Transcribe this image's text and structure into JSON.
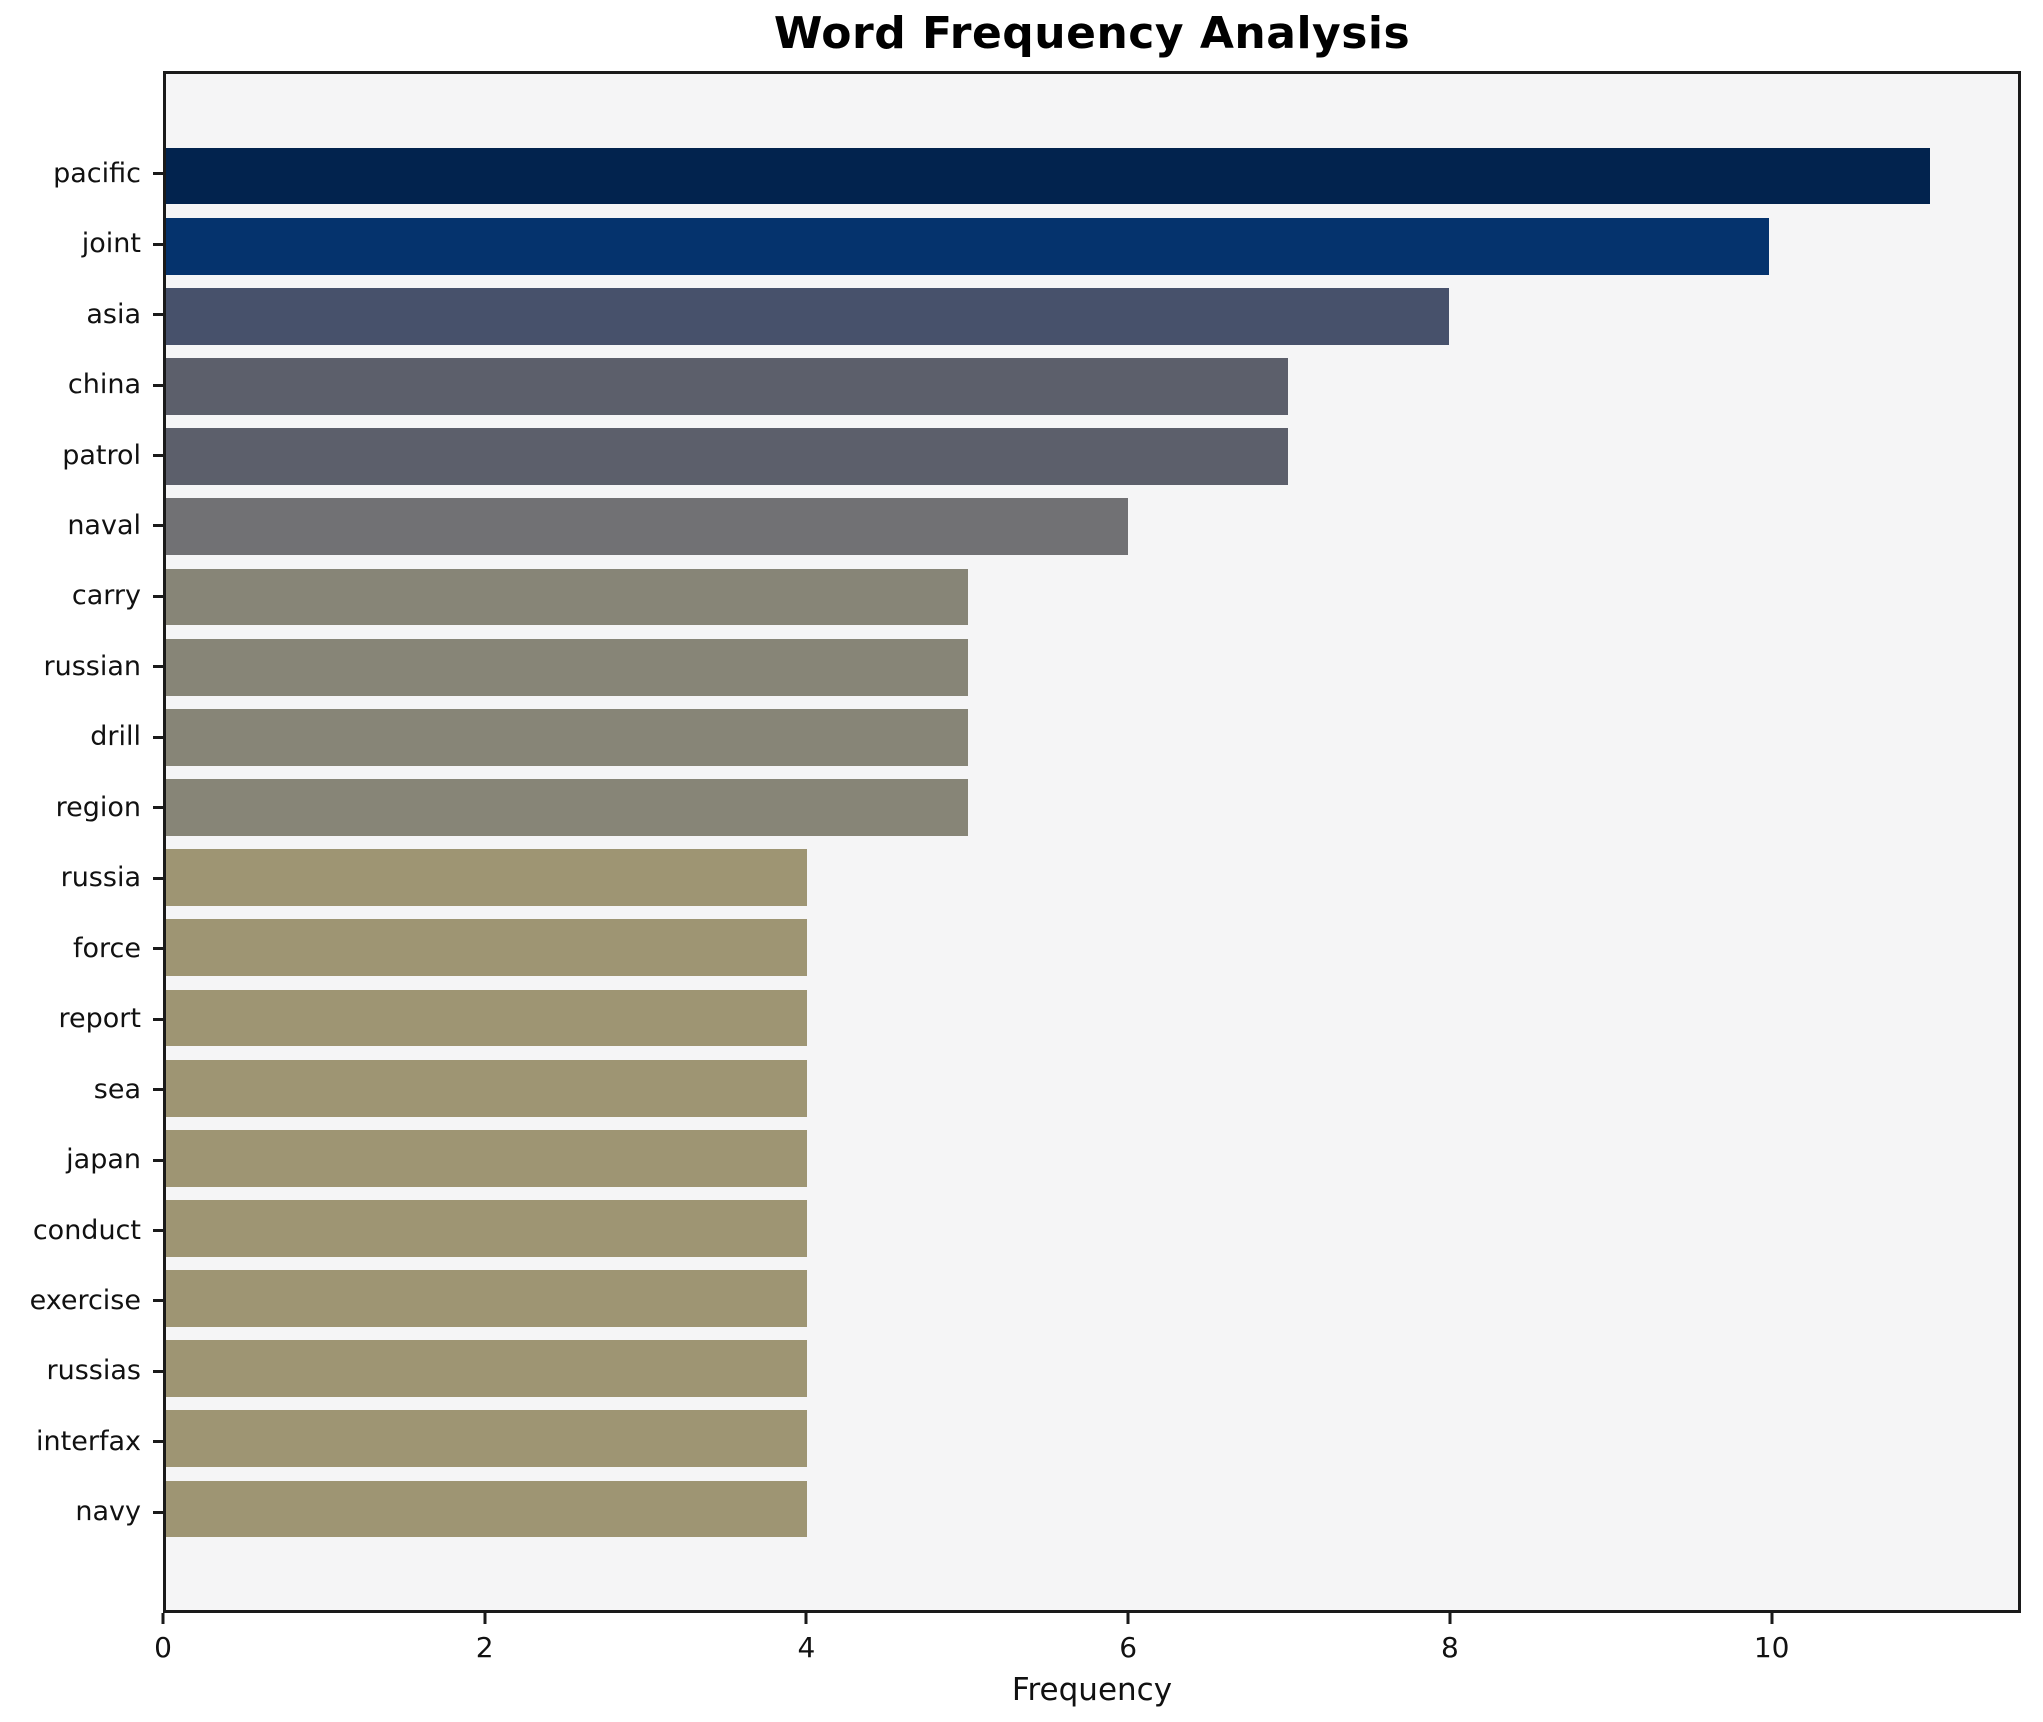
{
  "title": "Word Frequency Analysis",
  "xlabel": "Frequency",
  "chart_data": {
    "type": "bar",
    "orientation": "horizontal",
    "title": "Word Frequency Analysis",
    "xlabel": "Frequency",
    "ylabel": "",
    "xlim": [
      0,
      11.55
    ],
    "x_ticks": [
      0,
      2,
      4,
      6,
      8,
      10
    ],
    "grid": false,
    "legend": false,
    "plot_background": "#f5f5f6",
    "spine_color": "#1a1a1a",
    "categories": [
      "pacific",
      "joint",
      "asia",
      "china",
      "patrol",
      "naval",
      "carry",
      "russian",
      "drill",
      "region",
      "russia",
      "force",
      "report",
      "sea",
      "japan",
      "conduct",
      "exercise",
      "russias",
      "interfax",
      "navy"
    ],
    "values": [
      11,
      10,
      8,
      7,
      7,
      6,
      5,
      5,
      5,
      5,
      4,
      4,
      4,
      4,
      4,
      4,
      4,
      4,
      4,
      4
    ],
    "bar_colors": [
      "#02234e",
      "#05336d",
      "#47516b",
      "#5c5f6b",
      "#5c5f6b",
      "#717174",
      "#878577",
      "#878577",
      "#878577",
      "#878577",
      "#9e9573",
      "#9e9573",
      "#9e9573",
      "#9e9573",
      "#9e9573",
      "#9e9573",
      "#9e9573",
      "#9e9573",
      "#9e9573",
      "#9e9573"
    ]
  }
}
